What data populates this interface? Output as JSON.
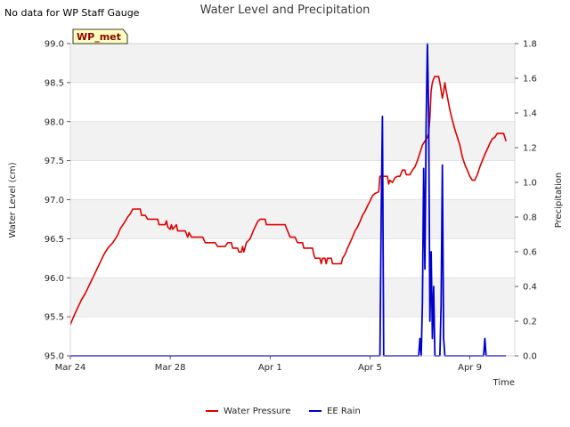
{
  "header": {
    "title": "Water Level and Precipitation",
    "no_data_note": "No data for WP Staff Gauge",
    "badge": "WP_met"
  },
  "chart_data": {
    "type": "line",
    "xlabel": "Time",
    "ylabel_left": "Water Level (cm)",
    "ylabel_right": "Precipitation",
    "x_ticks": [
      {
        "day": 0,
        "label": "Mar 24"
      },
      {
        "day": 4,
        "label": "Mar 28"
      },
      {
        "day": 8,
        "label": "Apr 1"
      },
      {
        "day": 12,
        "label": "Apr 5"
      },
      {
        "day": 16,
        "label": "Apr 9"
      }
    ],
    "xlim_days": [
      0,
      17.8
    ],
    "ylim_left": [
      95.0,
      99.0
    ],
    "yticks_left": [
      "95.0",
      "95.5",
      "96.0",
      "96.5",
      "97.0",
      "97.5",
      "98.0",
      "98.5",
      "99.0"
    ],
    "ylim_right": [
      0.0,
      1.8
    ],
    "yticks_right": [
      "0.0",
      "0.2",
      "0.4",
      "0.6",
      "0.8",
      "1.0",
      "1.2",
      "1.4",
      "1.6",
      "1.8"
    ],
    "grid": "horizontal",
    "legend_position": "bottom-center",
    "series": [
      {
        "name": "Water Pressure",
        "axis": "left",
        "color": "#dd0000",
        "points": [
          [
            0.0,
            95.4
          ],
          [
            0.1,
            95.48
          ],
          [
            0.2,
            95.55
          ],
          [
            0.3,
            95.62
          ],
          [
            0.45,
            95.72
          ],
          [
            0.6,
            95.8
          ],
          [
            0.75,
            95.9
          ],
          [
            0.9,
            96.0
          ],
          [
            1.05,
            96.1
          ],
          [
            1.2,
            96.2
          ],
          [
            1.35,
            96.3
          ],
          [
            1.5,
            96.38
          ],
          [
            1.7,
            96.45
          ],
          [
            1.9,
            96.55
          ],
          [
            2.0,
            96.63
          ],
          [
            2.15,
            96.7
          ],
          [
            2.3,
            96.78
          ],
          [
            2.4,
            96.82
          ],
          [
            2.5,
            96.88
          ],
          [
            2.6,
            96.88
          ],
          [
            2.8,
            96.88
          ],
          [
            2.85,
            96.8
          ],
          [
            3.0,
            96.8
          ],
          [
            3.1,
            96.75
          ],
          [
            3.3,
            96.75
          ],
          [
            3.5,
            96.75
          ],
          [
            3.55,
            96.68
          ],
          [
            3.8,
            96.68
          ],
          [
            3.85,
            96.73
          ],
          [
            3.9,
            96.65
          ],
          [
            4.0,
            96.62
          ],
          [
            4.05,
            96.68
          ],
          [
            4.1,
            96.62
          ],
          [
            4.25,
            96.68
          ],
          [
            4.3,
            96.6
          ],
          [
            4.6,
            96.6
          ],
          [
            4.7,
            96.52
          ],
          [
            4.75,
            96.58
          ],
          [
            4.85,
            96.52
          ],
          [
            5.2,
            96.52
          ],
          [
            5.3,
            96.52
          ],
          [
            5.4,
            96.45
          ],
          [
            5.8,
            96.45
          ],
          [
            5.9,
            96.4
          ],
          [
            6.2,
            96.4
          ],
          [
            6.3,
            96.45
          ],
          [
            6.45,
            96.45
          ],
          [
            6.5,
            96.38
          ],
          [
            6.7,
            96.38
          ],
          [
            6.75,
            96.33
          ],
          [
            6.85,
            96.33
          ],
          [
            6.9,
            96.4
          ],
          [
            6.95,
            96.33
          ],
          [
            7.05,
            96.45
          ],
          [
            7.2,
            96.5
          ],
          [
            7.3,
            96.58
          ],
          [
            7.4,
            96.65
          ],
          [
            7.5,
            96.72
          ],
          [
            7.6,
            96.75
          ],
          [
            7.8,
            96.75
          ],
          [
            7.85,
            96.68
          ],
          [
            8.6,
            96.68
          ],
          [
            8.7,
            96.6
          ],
          [
            8.8,
            96.52
          ],
          [
            9.0,
            96.52
          ],
          [
            9.1,
            96.45
          ],
          [
            9.3,
            96.45
          ],
          [
            9.35,
            96.38
          ],
          [
            9.7,
            96.38
          ],
          [
            9.75,
            96.3
          ],
          [
            9.8,
            96.25
          ],
          [
            10.0,
            96.25
          ],
          [
            10.05,
            96.18
          ],
          [
            10.1,
            96.25
          ],
          [
            10.2,
            96.25
          ],
          [
            10.25,
            96.18
          ],
          [
            10.3,
            96.25
          ],
          [
            10.45,
            96.25
          ],
          [
            10.5,
            96.18
          ],
          [
            10.85,
            96.18
          ],
          [
            10.9,
            96.25
          ],
          [
            11.0,
            96.3
          ],
          [
            11.1,
            96.38
          ],
          [
            11.2,
            96.45
          ],
          [
            11.3,
            96.52
          ],
          [
            11.4,
            96.6
          ],
          [
            11.5,
            96.65
          ],
          [
            11.6,
            96.72
          ],
          [
            11.7,
            96.8
          ],
          [
            11.8,
            96.85
          ],
          [
            11.9,
            96.92
          ],
          [
            12.0,
            96.98
          ],
          [
            12.1,
            97.05
          ],
          [
            12.2,
            97.08
          ],
          [
            12.35,
            97.1
          ],
          [
            12.4,
            97.3
          ],
          [
            12.5,
            97.3
          ],
          [
            12.7,
            97.3
          ],
          [
            12.75,
            97.2
          ],
          [
            12.8,
            97.25
          ],
          [
            12.9,
            97.22
          ],
          [
            13.0,
            97.28
          ],
          [
            13.1,
            97.3
          ],
          [
            13.2,
            97.3
          ],
          [
            13.3,
            97.38
          ],
          [
            13.4,
            97.38
          ],
          [
            13.45,
            97.32
          ],
          [
            13.6,
            97.32
          ],
          [
            13.7,
            97.38
          ],
          [
            13.8,
            97.42
          ],
          [
            13.9,
            97.5
          ],
          [
            14.0,
            97.6
          ],
          [
            14.1,
            97.7
          ],
          [
            14.2,
            97.75
          ],
          [
            14.3,
            97.8
          ],
          [
            14.35,
            97.85
          ],
          [
            14.4,
            98.05
          ],
          [
            14.45,
            98.4
          ],
          [
            14.5,
            98.5
          ],
          [
            14.55,
            98.55
          ],
          [
            14.6,
            98.58
          ],
          [
            14.75,
            98.58
          ],
          [
            14.8,
            98.5
          ],
          [
            14.85,
            98.4
          ],
          [
            14.9,
            98.3
          ],
          [
            14.95,
            98.38
          ],
          [
            15.0,
            98.5
          ],
          [
            15.05,
            98.4
          ],
          [
            15.1,
            98.32
          ],
          [
            15.2,
            98.15
          ],
          [
            15.3,
            98.02
          ],
          [
            15.4,
            97.9
          ],
          [
            15.5,
            97.8
          ],
          [
            15.6,
            97.7
          ],
          [
            15.7,
            97.55
          ],
          [
            15.8,
            97.45
          ],
          [
            15.9,
            97.38
          ],
          [
            16.0,
            97.3
          ],
          [
            16.1,
            97.25
          ],
          [
            16.2,
            97.25
          ],
          [
            16.3,
            97.32
          ],
          [
            16.4,
            97.42
          ],
          [
            16.5,
            97.5
          ],
          [
            16.6,
            97.58
          ],
          [
            16.7,
            97.65
          ],
          [
            16.8,
            97.72
          ],
          [
            16.9,
            97.78
          ],
          [
            17.0,
            97.8
          ],
          [
            17.1,
            97.85
          ],
          [
            17.35,
            97.85
          ],
          [
            17.4,
            97.8
          ],
          [
            17.45,
            97.75
          ]
        ]
      },
      {
        "name": "EE Rain",
        "axis": "right",
        "color": "#0000cc",
        "points": [
          [
            0.0,
            0.0
          ],
          [
            12.4,
            0.0
          ],
          [
            12.45,
            0.8
          ],
          [
            12.5,
            1.38
          ],
          [
            12.55,
            0.0
          ],
          [
            13.95,
            0.0
          ],
          [
            14.0,
            0.1
          ],
          [
            14.05,
            0.0
          ],
          [
            14.1,
            0.3
          ],
          [
            14.15,
            1.08
          ],
          [
            14.2,
            0.5
          ],
          [
            14.25,
            1.35
          ],
          [
            14.3,
            1.8
          ],
          [
            14.35,
            1.4
          ],
          [
            14.4,
            0.2
          ],
          [
            14.45,
            0.6
          ],
          [
            14.5,
            0.1
          ],
          [
            14.55,
            0.4
          ],
          [
            14.6,
            0.0
          ],
          [
            14.8,
            0.0
          ],
          [
            14.85,
            0.3
          ],
          [
            14.9,
            1.1
          ],
          [
            14.95,
            0.1
          ],
          [
            15.0,
            0.0
          ],
          [
            16.55,
            0.0
          ],
          [
            16.6,
            0.1
          ],
          [
            16.65,
            0.0
          ],
          [
            17.45,
            0.0
          ]
        ]
      }
    ]
  }
}
